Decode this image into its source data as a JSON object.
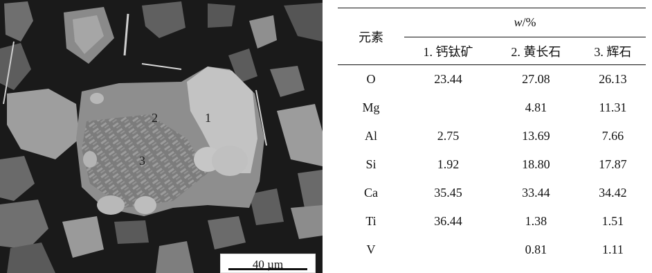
{
  "micrograph": {
    "phase_labels": [
      "1",
      "2",
      "3"
    ],
    "scale_bar": "40 µm"
  },
  "table": {
    "element_header": "元素",
    "group_header_var": "w",
    "group_header_unit": "/%",
    "columns": [
      "1. 钙钛矿",
      "2. 黄长石",
      "3. 辉石"
    ],
    "rows": [
      {
        "element": "O",
        "values": [
          "23.44",
          "27.08",
          "26.13"
        ]
      },
      {
        "element": "Mg",
        "values": [
          "",
          "4.81",
          "11.31"
        ]
      },
      {
        "element": "Al",
        "values": [
          "2.75",
          "13.69",
          "7.66"
        ]
      },
      {
        "element": "Si",
        "values": [
          "1.92",
          "18.80",
          "17.87"
        ]
      },
      {
        "element": "Ca",
        "values": [
          "35.45",
          "33.44",
          "34.42"
        ]
      },
      {
        "element": "Ti",
        "values": [
          "36.44",
          "1.38",
          "1.51"
        ]
      },
      {
        "element": "V",
        "values": [
          "",
          "0.81",
          "1.11"
        ]
      }
    ]
  }
}
